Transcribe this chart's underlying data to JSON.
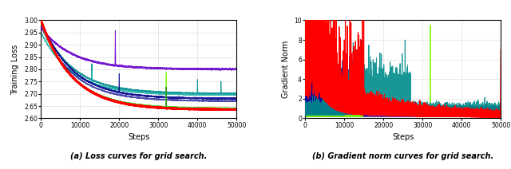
{
  "fig_width": 6.4,
  "fig_height": 2.12,
  "dpi": 100,
  "subplot_a": {
    "title": "(a) Loss curves for grid search.",
    "xlabel": "Steps",
    "ylabel": "Training Loss",
    "xlim": [
      0,
      50000
    ],
    "ylim": [
      2.6,
      3.0
    ],
    "yticks": [
      2.6,
      2.65,
      2.7,
      2.75,
      2.8,
      2.85,
      2.9,
      2.95,
      3.0
    ],
    "xticks": [
      0,
      10000,
      20000,
      30000,
      40000,
      50000
    ],
    "xtick_labels": [
      "0",
      "10000",
      "20000",
      "30000",
      "40000",
      "50000"
    ]
  },
  "subplot_b": {
    "title": "(b) Gradient norm curves for grid search.",
    "xlabel": "Steps",
    "ylabel": "Gradient Norm",
    "xlim": [
      0,
      50000
    ],
    "ylim": [
      0,
      10
    ],
    "yticks": [
      0,
      2,
      4,
      6,
      8,
      10
    ],
    "xticks": [
      0,
      10000,
      20000,
      30000,
      40000,
      50000
    ],
    "xtick_labels": [
      "0",
      "10000",
      "20000",
      "30000",
      "40000",
      "50000"
    ]
  },
  "colors": {
    "red": "#FF0000",
    "blue": "#00008B",
    "teal": "#008B8B",
    "navy": "#00008B",
    "purple": "#4B0082",
    "lime": "#90EE90",
    "green": "#006400",
    "cyan_teal": "#20B2AA",
    "medium_blue": "#0000CD",
    "olive": "#6B8E23",
    "dark_teal": "#008080"
  },
  "background_color": "#FFFFFF",
  "grid_color": "#E0E0E0"
}
